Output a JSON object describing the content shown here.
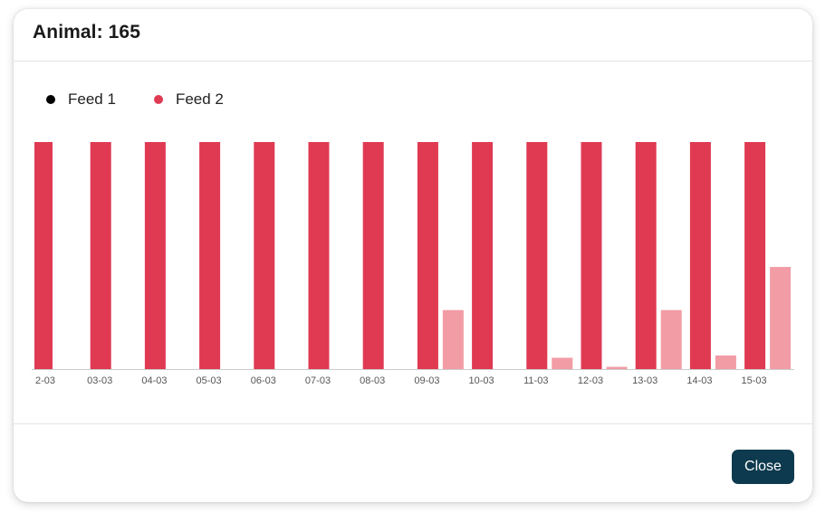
{
  "modal": {
    "title": "Animal: 165",
    "close_label": "Close"
  },
  "colors": {
    "feed1": "#000000",
    "feed2": "#e03a53",
    "feed2_light": "#f29ca6",
    "button": "#0d3a4e"
  },
  "chart_data": {
    "type": "bar",
    "legend": [
      "Feed 1",
      "Feed 2"
    ],
    "legend_placement": "top-left",
    "categories": [
      "2-03",
      "03-03",
      "04-03",
      "05-03",
      "06-03",
      "07-03",
      "08-03",
      "09-03",
      "10-03",
      "11-03",
      "12-03",
      "13-03",
      "14-03",
      "15-03"
    ],
    "series": [
      {
        "name": "Feed 2",
        "color": "#e03a53",
        "values": [
          100,
          100,
          100,
          100,
          100,
          100,
          100,
          100,
          100,
          100,
          100,
          100,
          100,
          100
        ]
      },
      {
        "name": "",
        "color": "#f29ca6",
        "values": [
          0,
          0,
          0,
          0,
          0,
          0,
          0,
          26,
          0,
          5,
          1,
          26,
          6,
          45
        ]
      }
    ],
    "ylim": [
      0,
      100
    ],
    "grid": false,
    "title": "",
    "xlabel": "",
    "ylabel": ""
  }
}
